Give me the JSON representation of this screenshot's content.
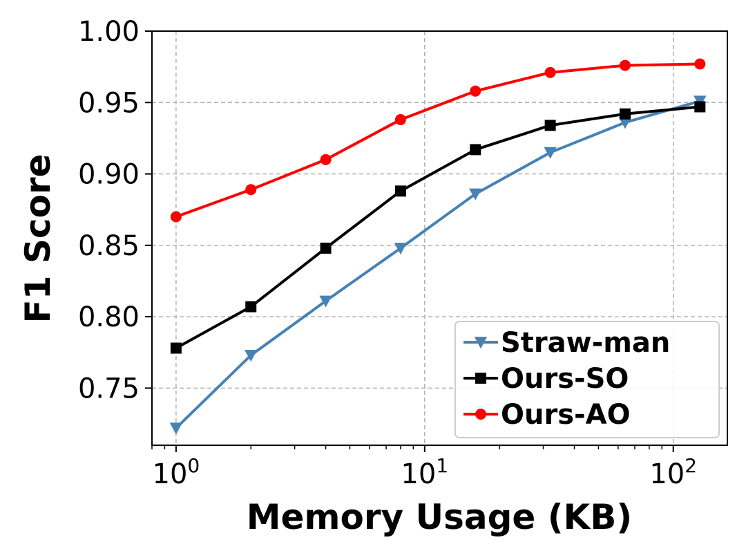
{
  "chart_data": {
    "type": "line",
    "xscale": "log",
    "xlabel": "Memory Usage (KB)",
    "ylabel": "F1 Score",
    "xlim": [
      0.8,
      165
    ],
    "ylim": [
      0.71,
      1.0
    ],
    "grid": true,
    "legend_position": "lower-right",
    "x": [
      1,
      2,
      4,
      8,
      16,
      32,
      64,
      128
    ],
    "x_ticks": [
      {
        "value": 1,
        "base": "10",
        "exp": "0"
      },
      {
        "value": 10,
        "base": "10",
        "exp": "1"
      },
      {
        "value": 100,
        "base": "10",
        "exp": "2"
      }
    ],
    "y_ticks": [
      "0.75",
      "0.80",
      "0.85",
      "0.90",
      "0.95",
      "1.00"
    ],
    "series": [
      {
        "name": "Straw-man",
        "color": "#4682b4",
        "marker": "triangle-down",
        "values": [
          0.722,
          0.773,
          0.811,
          0.848,
          0.886,
          0.915,
          0.936,
          0.951
        ]
      },
      {
        "name": "Ours-SO",
        "color": "#000000",
        "marker": "square",
        "values": [
          0.778,
          0.807,
          0.848,
          0.888,
          0.917,
          0.934,
          0.942,
          0.947
        ]
      },
      {
        "name": "Ours-AO",
        "color": "#ff0000",
        "marker": "circle",
        "values": [
          0.87,
          0.889,
          0.91,
          0.938,
          0.958,
          0.971,
          0.976,
          0.977
        ]
      }
    ]
  }
}
